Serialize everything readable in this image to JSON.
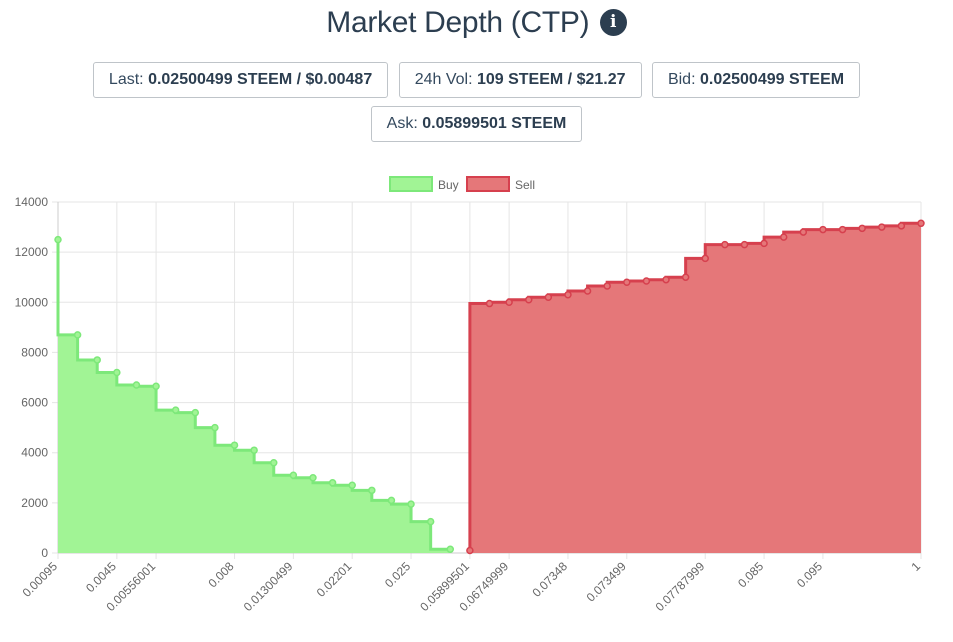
{
  "header": {
    "title": "Market Depth (CTP)",
    "info_icon": "info-circle-icon"
  },
  "stats": [
    {
      "label": "Last:",
      "value": "0.02500499 STEEM / $0.00487"
    },
    {
      "label": "24h Vol:",
      "value": "109 STEEM / $21.27"
    },
    {
      "label": "Bid:",
      "value": "0.02500499 STEEM"
    },
    {
      "label": "Ask:",
      "value": "0.05899501 STEEM"
    }
  ],
  "chart_data": {
    "type": "area",
    "legend": [
      {
        "name": "Buy",
        "fill": "#a1f495",
        "stroke": "#7de87a"
      },
      {
        "name": "Sell",
        "fill": "#e57779",
        "stroke": "#d6404e"
      }
    ],
    "legend_position": "top",
    "grid": true,
    "ylim": [
      0,
      14000
    ],
    "y_ticks": [
      0,
      2000,
      4000,
      6000,
      8000,
      10000,
      12000,
      14000
    ],
    "x_tick_labels": [
      "0.00095",
      "0.0045",
      "0.00556001",
      "0.008",
      "0.01300499",
      "0.02201",
      "0.025",
      "0.05899501",
      "0.06749999",
      "0.07348",
      "0.073499",
      "0.07787999",
      "0.085",
      "0.095",
      "1"
    ],
    "x_tick_index": [
      0,
      3,
      5,
      9,
      12,
      15,
      18,
      21,
      23,
      26,
      29,
      33,
      36,
      39,
      44
    ],
    "points_count": 45,
    "buy": {
      "name": "Buy",
      "indices": [
        0,
        1,
        2,
        3,
        4,
        5,
        6,
        7,
        8,
        9,
        10,
        11,
        12,
        13,
        14,
        15,
        16,
        17,
        18,
        19,
        20
      ],
      "values": [
        12500,
        8700,
        7700,
        7200,
        6700,
        6650,
        5700,
        5600,
        5000,
        4300,
        4100,
        3600,
        3100,
        3000,
        2800,
        2700,
        2500,
        2100,
        1950,
        1250,
        150
      ]
    },
    "sell": {
      "name": "Sell",
      "indices": [
        21,
        22,
        23,
        24,
        25,
        26,
        27,
        28,
        29,
        30,
        31,
        32,
        33,
        34,
        35,
        36,
        37,
        38,
        39,
        40,
        41,
        42,
        43,
        44
      ],
      "values": [
        100,
        9950,
        10000,
        10100,
        10200,
        10300,
        10450,
        10650,
        10800,
        10850,
        10900,
        11000,
        11750,
        12300,
        12300,
        12350,
        12600,
        12800,
        12900,
        12900,
        12950,
        13000,
        13050,
        13150
      ]
    }
  }
}
